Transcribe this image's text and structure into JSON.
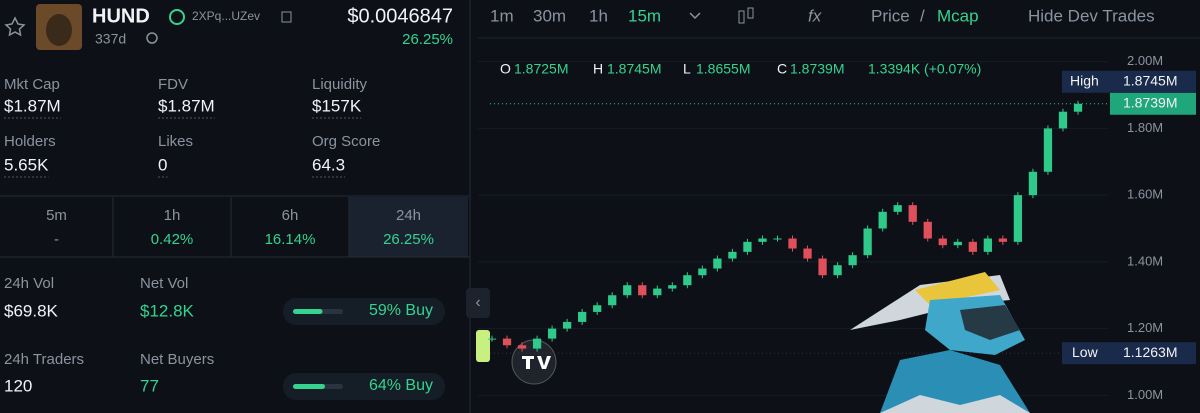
{
  "header": {
    "symbol": "HUND",
    "address": "2XPq...UZev",
    "age": "337d",
    "price": "$0.0046847",
    "change": "26.25%"
  },
  "stats": [
    {
      "label": "Mkt Cap",
      "value": "$1.87M"
    },
    {
      "label": "FDV",
      "value": "$1.87M"
    },
    {
      "label": "Liquidity",
      "value": "$157K"
    },
    {
      "label": "Holders",
      "value": "5.65K"
    },
    {
      "label": "Likes",
      "value": "0"
    },
    {
      "label": "Org Score",
      "value": "64.3"
    }
  ],
  "tabs": [
    {
      "label": "5m",
      "value": "-"
    },
    {
      "label": "1h",
      "value": "0.42%"
    },
    {
      "label": "6h",
      "value": "16.14%"
    },
    {
      "label": "24h",
      "value": "26.25%"
    }
  ],
  "activity": [
    {
      "label": "24h Vol",
      "value": "$69.8K",
      "label2": "Net Vol",
      "value2": "$12.8K",
      "buy_pct": 59,
      "buy_label": "59% Buy"
    },
    {
      "label": "24h Traders",
      "value": "120",
      "label2": "Net Buyers",
      "value2": "77",
      "buy_pct": 64,
      "buy_label": "64% Buy"
    }
  ],
  "toolbar": {
    "intervals": [
      "1m",
      "30m",
      "1h",
      "15m"
    ],
    "active": "15m",
    "fx": "fx",
    "price": "Price",
    "slash": "/",
    "mcap": "Mcap",
    "hide": "Hide Dev Trades"
  },
  "ohlc": {
    "o": "O",
    "o_value": "1.8725M",
    "h": "H",
    "h_value": "1.8745M",
    "l": "L",
    "l_value": "1.8655M",
    "c": "C",
    "c_value": "1.8739M",
    "change": "1.3394K (+0.07%)"
  },
  "chart": {
    "ylim": [
      0.95,
      2.05
    ],
    "yticks": [
      {
        "value": 1.0,
        "label": "1.00M"
      },
      {
        "value": 1.2,
        "label": "1.20M"
      },
      {
        "value": 1.4,
        "label": "1.40M"
      },
      {
        "value": 1.6,
        "label": "1.60M"
      },
      {
        "value": 1.8,
        "label": "1.80M"
      },
      {
        "value": 2.0,
        "label": "2.00M"
      }
    ],
    "closes": [
      1.17,
      1.15,
      1.14,
      1.17,
      1.2,
      1.22,
      1.25,
      1.27,
      1.3,
      1.33,
      1.3,
      1.32,
      1.33,
      1.36,
      1.38,
      1.41,
      1.43,
      1.46,
      1.47,
      1.47,
      1.44,
      1.41,
      1.36,
      1.39,
      1.42,
      1.5,
      1.55,
      1.57,
      1.52,
      1.47,
      1.45,
      1.46,
      1.43,
      1.47,
      1.46,
      1.6,
      1.67,
      1.8,
      1.85,
      1.8739
    ],
    "up_color": "#2fc98a",
    "down_color": "#e0505a",
    "high": {
      "label": "High",
      "value": 1.8745,
      "value_label": "1.8745M"
    },
    "current": {
      "value": 1.8739,
      "value_label": "1.8739M"
    },
    "low": {
      "label": "Low",
      "value": 1.1263,
      "value_label": "1.1263M"
    }
  }
}
